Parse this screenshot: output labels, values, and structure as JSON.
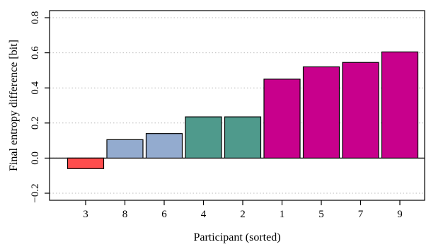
{
  "chart_data": {
    "type": "bar",
    "xlabel": "Participant (sorted)",
    "ylabel": "Final entropy difference [bit]",
    "ylim": [
      -0.2,
      0.8
    ],
    "yticks": [
      -0.2,
      0.0,
      0.2,
      0.4,
      0.6,
      0.8
    ],
    "ytick_labels": [
      "−0.2",
      "0.0",
      "0.2",
      "0.4",
      "0.6",
      "0.8"
    ],
    "grid": true,
    "categories": [
      "3",
      "8",
      "6",
      "4",
      "2",
      "1",
      "5",
      "7",
      "9"
    ],
    "values": [
      -0.06,
      0.105,
      0.14,
      0.235,
      0.235,
      0.45,
      0.52,
      0.545,
      0.605
    ],
    "bar_colors": [
      "#ff4d4d",
      "#93abcf",
      "#93abcf",
      "#4f9a8c",
      "#4f9a8c",
      "#c8008c",
      "#c8008c",
      "#c8008c",
      "#c8008c"
    ]
  }
}
